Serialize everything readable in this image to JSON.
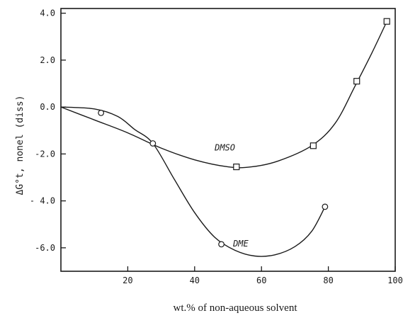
{
  "chart_data": {
    "type": "line",
    "title": "",
    "xlabel": "wt.% of non-aqueous solvent",
    "ylabel": "ΔG°t, nonel (diss)",
    "xlim": [
      0,
      100
    ],
    "ylim": [
      -7.0,
      4.2
    ],
    "x_ticks": [
      20,
      40,
      60,
      80,
      100
    ],
    "x_tick_labels": [
      "20",
      "40",
      "60",
      "80",
      "100"
    ],
    "y_ticks": [
      4.0,
      2.0,
      0.0,
      -2.0,
      -4.0,
      -6.0
    ],
    "y_tick_labels": [
      "4.0",
      "2.0",
      "0.0",
      "-2.0",
      "- 4.0",
      "-6.0"
    ],
    "grid": false,
    "series": [
      {
        "name": "DMSO",
        "marker": "square",
        "points": [
          [
            52.5,
            -2.55
          ],
          [
            75.5,
            -1.65
          ],
          [
            88.5,
            1.1
          ],
          [
            97.5,
            3.65
          ]
        ],
        "curve": [
          [
            0,
            0
          ],
          [
            10,
            -0.55
          ],
          [
            20,
            -1.1
          ],
          [
            30,
            -1.75
          ],
          [
            40,
            -2.25
          ],
          [
            50,
            -2.55
          ],
          [
            57,
            -2.55
          ],
          [
            65,
            -2.3
          ],
          [
            75,
            -1.65
          ],
          [
            82,
            -0.7
          ],
          [
            88,
            0.9
          ],
          [
            93,
            2.3
          ],
          [
            97.5,
            3.65
          ]
        ]
      },
      {
        "name": "DME",
        "marker": "circle",
        "points": [
          [
            12,
            -0.25
          ],
          [
            27.5,
            -1.55
          ],
          [
            48,
            -5.85
          ],
          [
            79,
            -4.25
          ]
        ],
        "curve": [
          [
            0,
            0
          ],
          [
            10,
            -0.08
          ],
          [
            17,
            -0.4
          ],
          [
            22,
            -0.95
          ],
          [
            27.5,
            -1.55
          ],
          [
            34,
            -3.1
          ],
          [
            40,
            -4.5
          ],
          [
            46,
            -5.55
          ],
          [
            52,
            -6.1
          ],
          [
            58,
            -6.35
          ],
          [
            64,
            -6.3
          ],
          [
            70,
            -5.95
          ],
          [
            75,
            -5.3
          ],
          [
            79,
            -4.25
          ]
        ]
      }
    ]
  }
}
